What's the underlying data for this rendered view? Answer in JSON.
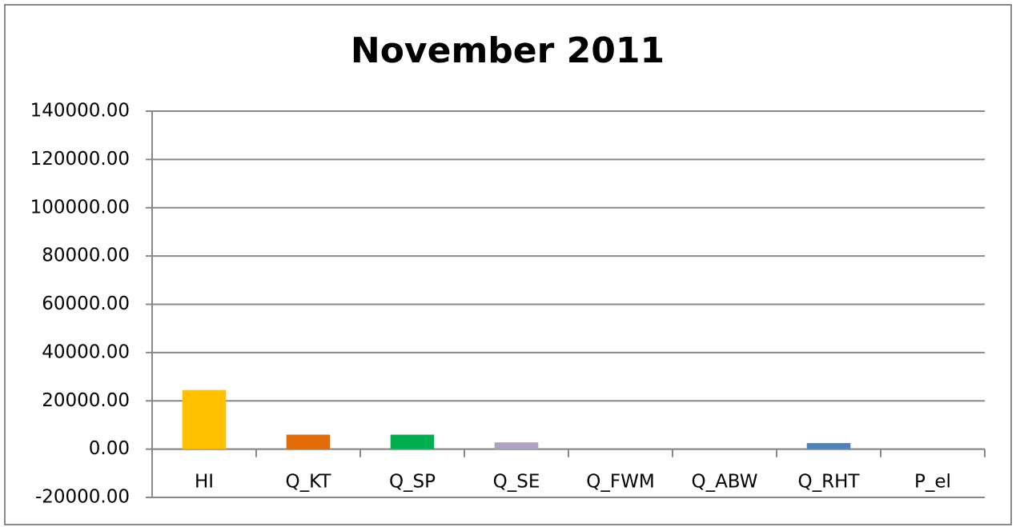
{
  "chart_data": {
    "type": "bar",
    "title": "November 2011",
    "categories": [
      "HI",
      "Q_KT",
      "Q_SP",
      "Q_SE",
      "Q_FWM",
      "Q_ABW",
      "Q_RHT",
      "P_el"
    ],
    "values": [
      24500,
      6000,
      6000,
      2800,
      0,
      0,
      2500,
      0
    ],
    "colors": [
      "#ffc000",
      "#e36c0a",
      "#00b050",
      "#b2a1c7",
      "#8064a2",
      "#4bacc6",
      "#4f81bd",
      "#c0504d"
    ],
    "ylim": [
      -20000,
      140000
    ],
    "yticks": [
      {
        "value": -20000,
        "label": "-20000.00"
      },
      {
        "value": 0,
        "label": "0.00"
      },
      {
        "value": 20000,
        "label": "20000.00"
      },
      {
        "value": 40000,
        "label": "40000.00"
      },
      {
        "value": 60000,
        "label": "60000.00"
      },
      {
        "value": 80000,
        "label": "80000.00"
      },
      {
        "value": 100000,
        "label": "100000.00"
      },
      {
        "value": 120000,
        "label": "120000.00"
      },
      {
        "value": 140000,
        "label": "140000.00"
      }
    ],
    "grid": true
  }
}
